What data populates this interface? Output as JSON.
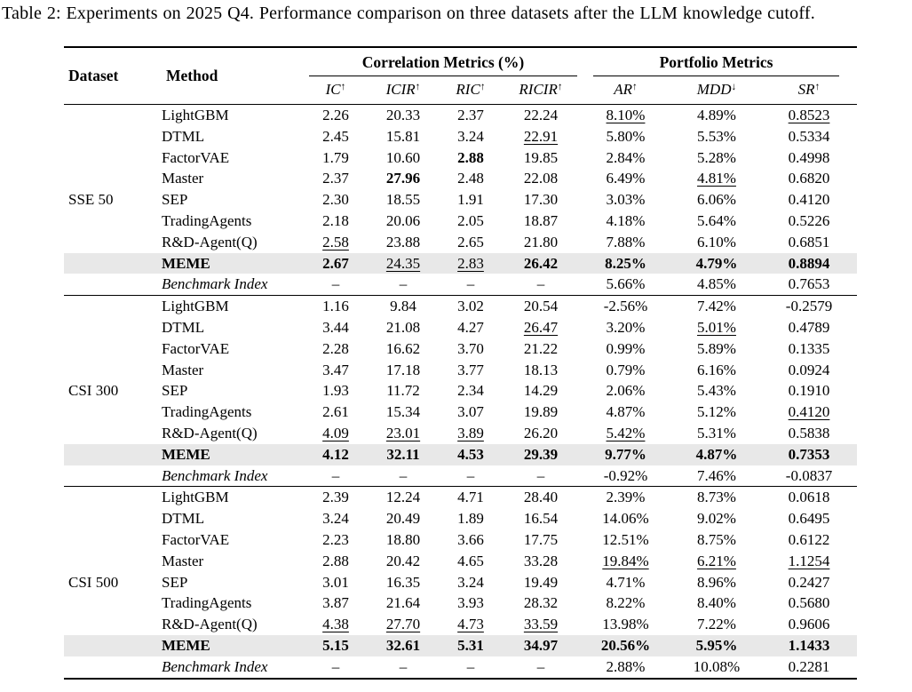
{
  "caption": "Table 2: Experiments on 2025 Q4. Performance comparison on three datasets after the LLM knowledge cutoff.",
  "table": {
    "highlight_color": "#e8e8e8",
    "header": {
      "dataset": "Dataset",
      "method": "Method",
      "groups": [
        {
          "label": "Correlation Metrics (%)",
          "cols": [
            {
              "label": "IC",
              "arrow": "↑"
            },
            {
              "label": "ICIR",
              "arrow": "↑"
            },
            {
              "label": "RIC",
              "arrow": "↑"
            },
            {
              "label": "RICIR",
              "arrow": "↑"
            }
          ]
        },
        {
          "label": "Portfolio Metrics",
          "cols": [
            {
              "label": "AR",
              "arrow": "↑"
            },
            {
              "label": "MDD",
              "arrow": "↓"
            },
            {
              "label": "SR",
              "arrow": "↑"
            }
          ]
        }
      ]
    },
    "sections": [
      {
        "dataset": "SSE 50",
        "rows": [
          {
            "method": "LightGBM",
            "style": "normal",
            "cells": [
              {
                "v": "2.26"
              },
              {
                "v": "20.33"
              },
              {
                "v": "2.37"
              },
              {
                "v": "22.24"
              },
              {
                "v": "8.10%",
                "u": true
              },
              {
                "v": "4.89%"
              },
              {
                "v": "0.8523",
                "u": true
              }
            ]
          },
          {
            "method": "DTML",
            "style": "normal",
            "cells": [
              {
                "v": "2.45"
              },
              {
                "v": "15.81"
              },
              {
                "v": "3.24"
              },
              {
                "v": "22.91",
                "u": true
              },
              {
                "v": "5.80%"
              },
              {
                "v": "5.53%"
              },
              {
                "v": "0.5334"
              }
            ]
          },
          {
            "method": "FactorVAE",
            "style": "normal",
            "cells": [
              {
                "v": "1.79"
              },
              {
                "v": "10.60"
              },
              {
                "v": "2.88",
                "b": true
              },
              {
                "v": "19.85"
              },
              {
                "v": "2.84%"
              },
              {
                "v": "5.28%"
              },
              {
                "v": "0.4998"
              }
            ]
          },
          {
            "method": "Master",
            "style": "normal",
            "cells": [
              {
                "v": "2.37"
              },
              {
                "v": "27.96",
                "b": true
              },
              {
                "v": "2.48"
              },
              {
                "v": "22.08"
              },
              {
                "v": "6.49%"
              },
              {
                "v": "4.81%",
                "u": true
              },
              {
                "v": "0.6820"
              }
            ]
          },
          {
            "method": "SEP",
            "style": "normal",
            "cells": [
              {
                "v": "2.30"
              },
              {
                "v": "18.55"
              },
              {
                "v": "1.91"
              },
              {
                "v": "17.30"
              },
              {
                "v": "3.03%"
              },
              {
                "v": "6.06%"
              },
              {
                "v": "0.4120"
              }
            ]
          },
          {
            "method": "TradingAgents",
            "style": "normal",
            "cells": [
              {
                "v": "2.18"
              },
              {
                "v": "20.06"
              },
              {
                "v": "2.05"
              },
              {
                "v": "18.87"
              },
              {
                "v": "4.18%"
              },
              {
                "v": "5.64%"
              },
              {
                "v": "0.5226"
              }
            ]
          },
          {
            "method": "R&D-Agent(Q)",
            "style": "normal",
            "cells": [
              {
                "v": "2.58",
                "u": true
              },
              {
                "v": "23.88"
              },
              {
                "v": "2.65"
              },
              {
                "v": "21.80"
              },
              {
                "v": "7.88%"
              },
              {
                "v": "6.10%"
              },
              {
                "v": "0.6851"
              }
            ]
          },
          {
            "method": "MEME",
            "style": "meme",
            "cells": [
              {
                "v": "2.67",
                "b": true
              },
              {
                "v": "24.35",
                "u": true
              },
              {
                "v": "2.83",
                "u": true
              },
              {
                "v": "26.42",
                "b": true
              },
              {
                "v": "8.25%",
                "b": true
              },
              {
                "v": "4.79%",
                "b": true
              },
              {
                "v": "0.8894",
                "b": true
              }
            ]
          },
          {
            "method": "Benchmark Index",
            "style": "benchmark",
            "cells": [
              {
                "v": "–"
              },
              {
                "v": "–"
              },
              {
                "v": "–"
              },
              {
                "v": "–"
              },
              {
                "v": "5.66%"
              },
              {
                "v": "4.85%"
              },
              {
                "v": "0.7653"
              }
            ]
          }
        ]
      },
      {
        "dataset": "CSI 300",
        "rows": [
          {
            "method": "LightGBM",
            "style": "normal",
            "cells": [
              {
                "v": "1.16"
              },
              {
                "v": "9.84"
              },
              {
                "v": "3.02"
              },
              {
                "v": "20.54"
              },
              {
                "v": "-2.56%"
              },
              {
                "v": "7.42%"
              },
              {
                "v": "-0.2579"
              }
            ]
          },
          {
            "method": "DTML",
            "style": "normal",
            "cells": [
              {
                "v": "3.44"
              },
              {
                "v": "21.08"
              },
              {
                "v": "4.27"
              },
              {
                "v": "26.47",
                "u": true
              },
              {
                "v": "3.20%"
              },
              {
                "v": "5.01%",
                "u": true
              },
              {
                "v": "0.4789"
              }
            ]
          },
          {
            "method": "FactorVAE",
            "style": "normal",
            "cells": [
              {
                "v": "2.28"
              },
              {
                "v": "16.62"
              },
              {
                "v": "3.70"
              },
              {
                "v": "21.22"
              },
              {
                "v": "0.99%"
              },
              {
                "v": "5.89%"
              },
              {
                "v": "0.1335"
              }
            ]
          },
          {
            "method": "Master",
            "style": "normal",
            "cells": [
              {
                "v": "3.47"
              },
              {
                "v": "17.18"
              },
              {
                "v": "3.77"
              },
              {
                "v": "18.13"
              },
              {
                "v": "0.79%"
              },
              {
                "v": "6.16%"
              },
              {
                "v": "0.0924"
              }
            ]
          },
          {
            "method": "SEP",
            "style": "normal",
            "cells": [
              {
                "v": "1.93"
              },
              {
                "v": "11.72"
              },
              {
                "v": "2.34"
              },
              {
                "v": "14.29"
              },
              {
                "v": "2.06%"
              },
              {
                "v": "5.43%"
              },
              {
                "v": "0.1910"
              }
            ]
          },
          {
            "method": "TradingAgents",
            "style": "normal",
            "cells": [
              {
                "v": "2.61"
              },
              {
                "v": "15.34"
              },
              {
                "v": "3.07"
              },
              {
                "v": "19.89"
              },
              {
                "v": "4.87%"
              },
              {
                "v": "5.12%"
              },
              {
                "v": "0.4120",
                "u": true
              }
            ]
          },
          {
            "method": "R&D-Agent(Q)",
            "style": "normal",
            "cells": [
              {
                "v": "4.09",
                "u": true
              },
              {
                "v": "23.01",
                "u": true
              },
              {
                "v": "3.89",
                "u": true
              },
              {
                "v": "26.20"
              },
              {
                "v": "5.42%",
                "u": true
              },
              {
                "v": "5.31%"
              },
              {
                "v": "0.5838"
              }
            ]
          },
          {
            "method": "MEME",
            "style": "meme",
            "cells": [
              {
                "v": "4.12",
                "b": true
              },
              {
                "v": "32.11",
                "b": true
              },
              {
                "v": "4.53",
                "b": true
              },
              {
                "v": "29.39",
                "b": true
              },
              {
                "v": "9.77%",
                "b": true
              },
              {
                "v": "4.87%",
                "b": true
              },
              {
                "v": "0.7353",
                "b": true
              }
            ]
          },
          {
            "method": "Benchmark Index",
            "style": "benchmark",
            "cells": [
              {
                "v": "–"
              },
              {
                "v": "–"
              },
              {
                "v": "–"
              },
              {
                "v": "–"
              },
              {
                "v": "-0.92%"
              },
              {
                "v": "7.46%"
              },
              {
                "v": "-0.0837"
              }
            ]
          }
        ]
      },
      {
        "dataset": "CSI 500",
        "rows": [
          {
            "method": "LightGBM",
            "style": "normal",
            "cells": [
              {
                "v": "2.39"
              },
              {
                "v": "12.24"
              },
              {
                "v": "4.71"
              },
              {
                "v": "28.40"
              },
              {
                "v": "2.39%"
              },
              {
                "v": "8.73%"
              },
              {
                "v": "0.0618"
              }
            ]
          },
          {
            "method": "DTML",
            "style": "normal",
            "cells": [
              {
                "v": "3.24"
              },
              {
                "v": "20.49"
              },
              {
                "v": "1.89"
              },
              {
                "v": "16.54"
              },
              {
                "v": "14.06%"
              },
              {
                "v": "9.02%"
              },
              {
                "v": "0.6495"
              }
            ]
          },
          {
            "method": "FactorVAE",
            "style": "normal",
            "cells": [
              {
                "v": "2.23"
              },
              {
                "v": "18.80"
              },
              {
                "v": "3.66"
              },
              {
                "v": "17.75"
              },
              {
                "v": "12.51%"
              },
              {
                "v": "8.75%"
              },
              {
                "v": "0.6122"
              }
            ]
          },
          {
            "method": "Master",
            "style": "normal",
            "cells": [
              {
                "v": "2.88"
              },
              {
                "v": "20.42"
              },
              {
                "v": "4.65"
              },
              {
                "v": "33.28"
              },
              {
                "v": "19.84%",
                "u": true
              },
              {
                "v": "6.21%",
                "u": true
              },
              {
                "v": "1.1254",
                "u": true
              }
            ]
          },
          {
            "method": "SEP",
            "style": "normal",
            "cells": [
              {
                "v": "3.01"
              },
              {
                "v": "16.35"
              },
              {
                "v": "3.24"
              },
              {
                "v": "19.49"
              },
              {
                "v": "4.71%"
              },
              {
                "v": "8.96%"
              },
              {
                "v": "0.2427"
              }
            ]
          },
          {
            "method": "TradingAgents",
            "style": "normal",
            "cells": [
              {
                "v": "3.87"
              },
              {
                "v": "21.64"
              },
              {
                "v": "3.93"
              },
              {
                "v": "28.32"
              },
              {
                "v": "8.22%"
              },
              {
                "v": "8.40%"
              },
              {
                "v": "0.5680"
              }
            ]
          },
          {
            "method": "R&D-Agent(Q)",
            "style": "normal",
            "cells": [
              {
                "v": "4.38",
                "u": true
              },
              {
                "v": "27.70",
                "u": true
              },
              {
                "v": "4.73",
                "u": true
              },
              {
                "v": "33.59",
                "u": true
              },
              {
                "v": "13.98%"
              },
              {
                "v": "7.22%"
              },
              {
                "v": "0.9606"
              }
            ]
          },
          {
            "method": "MEME",
            "style": "meme",
            "cells": [
              {
                "v": "5.15",
                "b": true
              },
              {
                "v": "32.61",
                "b": true
              },
              {
                "v": "5.31",
                "b": true
              },
              {
                "v": "34.97",
                "b": true
              },
              {
                "v": "20.56%",
                "b": true
              },
              {
                "v": "5.95%",
                "b": true
              },
              {
                "v": "1.1433",
                "b": true
              }
            ]
          },
          {
            "method": "Benchmark Index",
            "style": "benchmark",
            "cells": [
              {
                "v": "–"
              },
              {
                "v": "–"
              },
              {
                "v": "–"
              },
              {
                "v": "–"
              },
              {
                "v": "2.88%"
              },
              {
                "v": "10.08%"
              },
              {
                "v": "0.2281"
              }
            ]
          }
        ]
      }
    ]
  }
}
